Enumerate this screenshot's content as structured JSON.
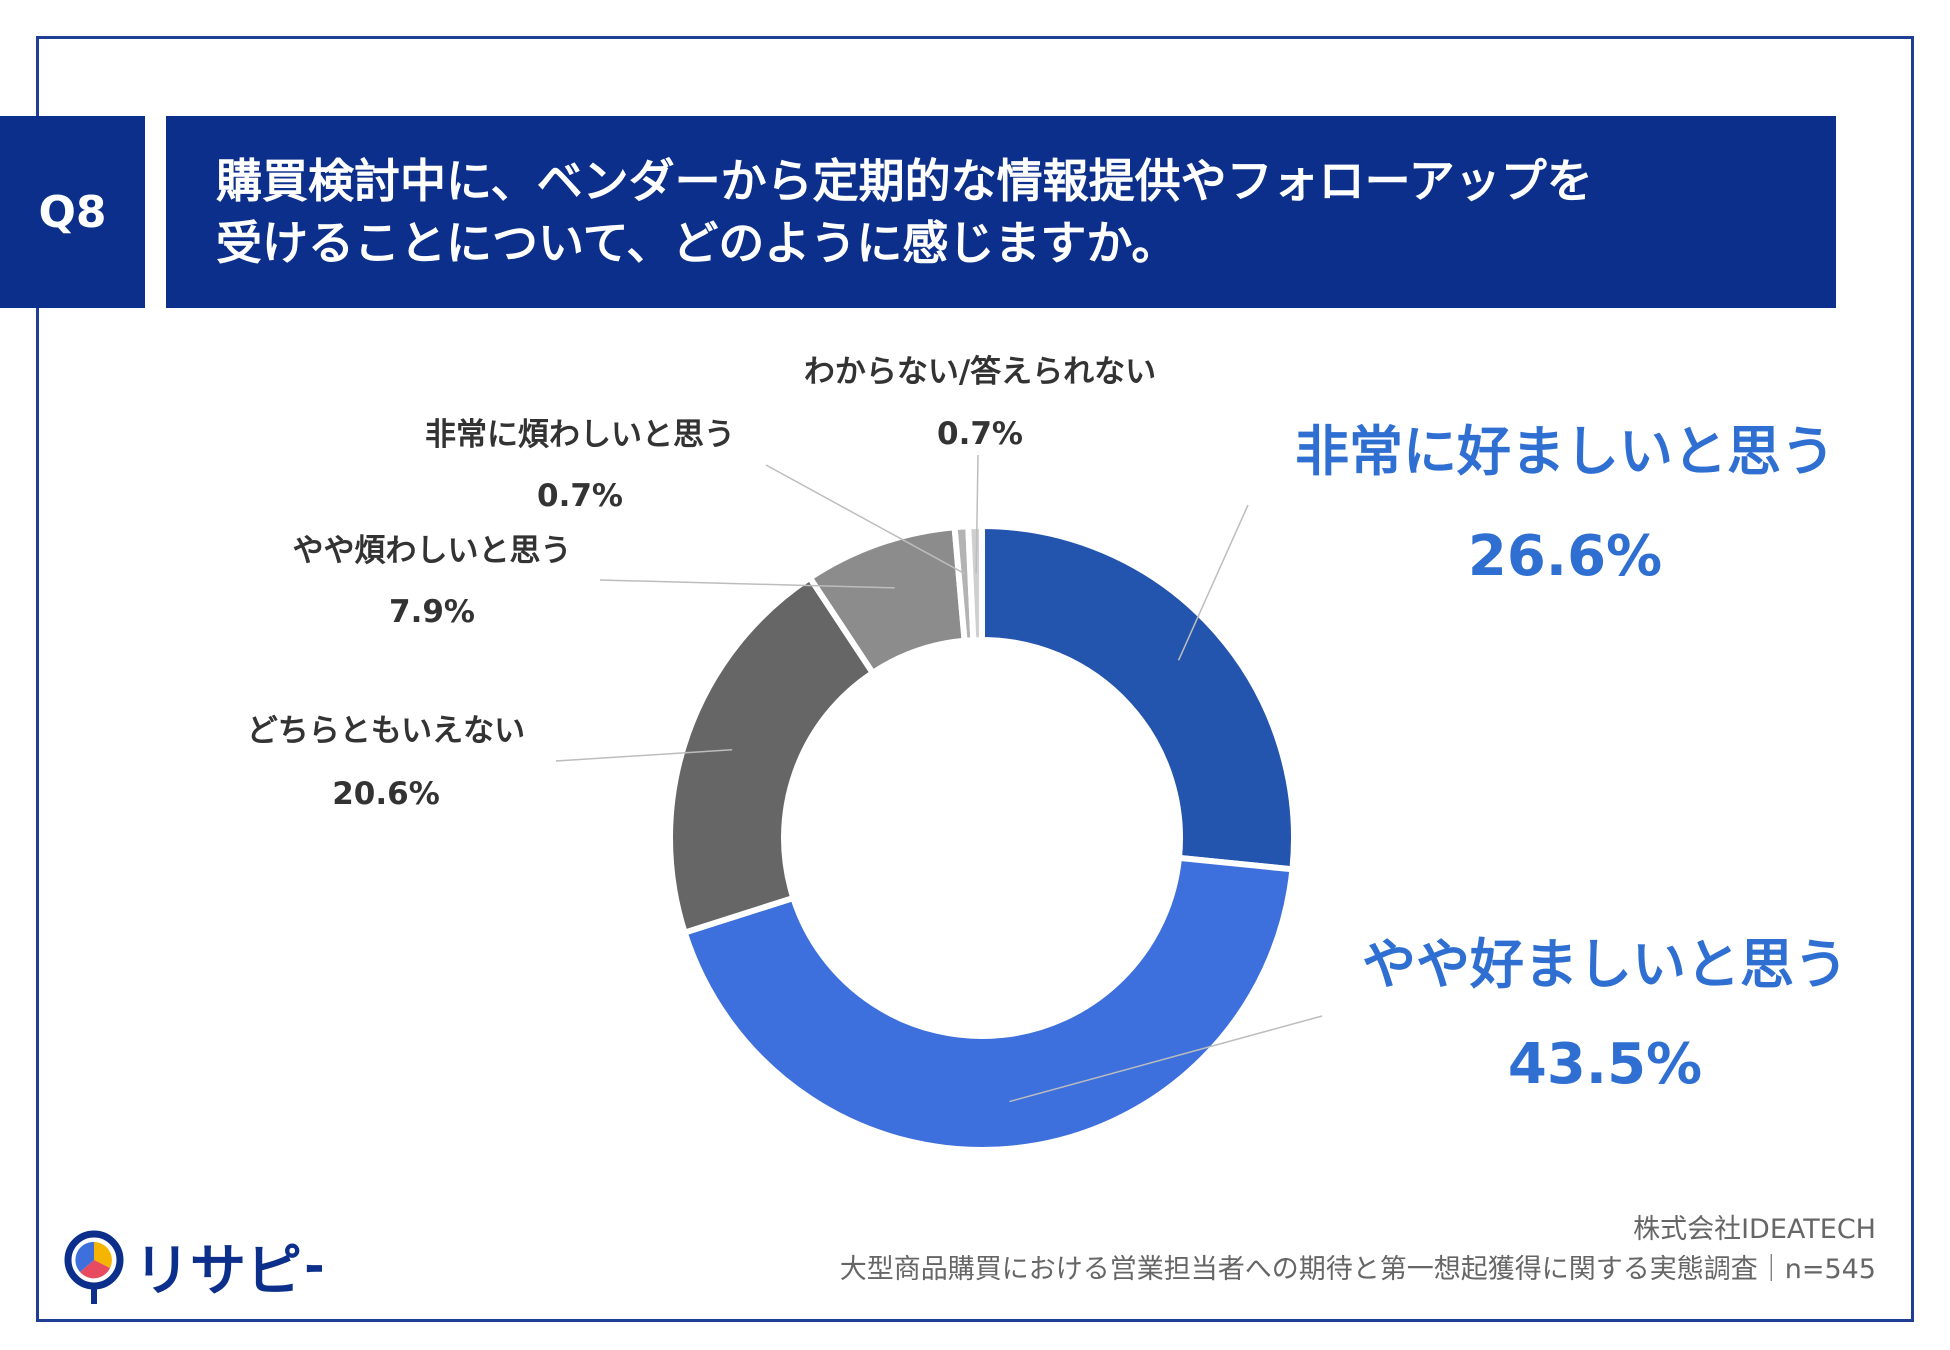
{
  "question": {
    "label": "Q8",
    "lines": [
      "購買検討中に、ベンダーから定期的な情報提供やフォローアップを",
      "受けることについて、どのように感じますか。"
    ]
  },
  "chart_data": {
    "type": "pie",
    "donut": true,
    "categories": [
      "非常に好ましいと思う",
      "やや好ましいと思う",
      "どちらともいえない",
      "やや煩わしいと思う",
      "非常に煩わしいと思う",
      "わからない/答えられない"
    ],
    "values": [
      26.6,
      43.5,
      20.6,
      7.9,
      0.7,
      0.7
    ],
    "value_labels": [
      "26.6%",
      "43.5%",
      "20.6%",
      "7.9%",
      "0.7%",
      "0.7%"
    ],
    "colors": [
      "#2455ae",
      "#3d70dd",
      "#666666",
      "#8c8c8c",
      "#b3b3b3",
      "#cfcfcf"
    ],
    "title": "",
    "labels_outside": true
  },
  "credit": {
    "company": "株式会社IDEATECH",
    "survey": "大型商品購買における営業担当者への期待と第一想起獲得に関する実態調査｜n=545"
  },
  "logo": {
    "text": "リサピー"
  }
}
